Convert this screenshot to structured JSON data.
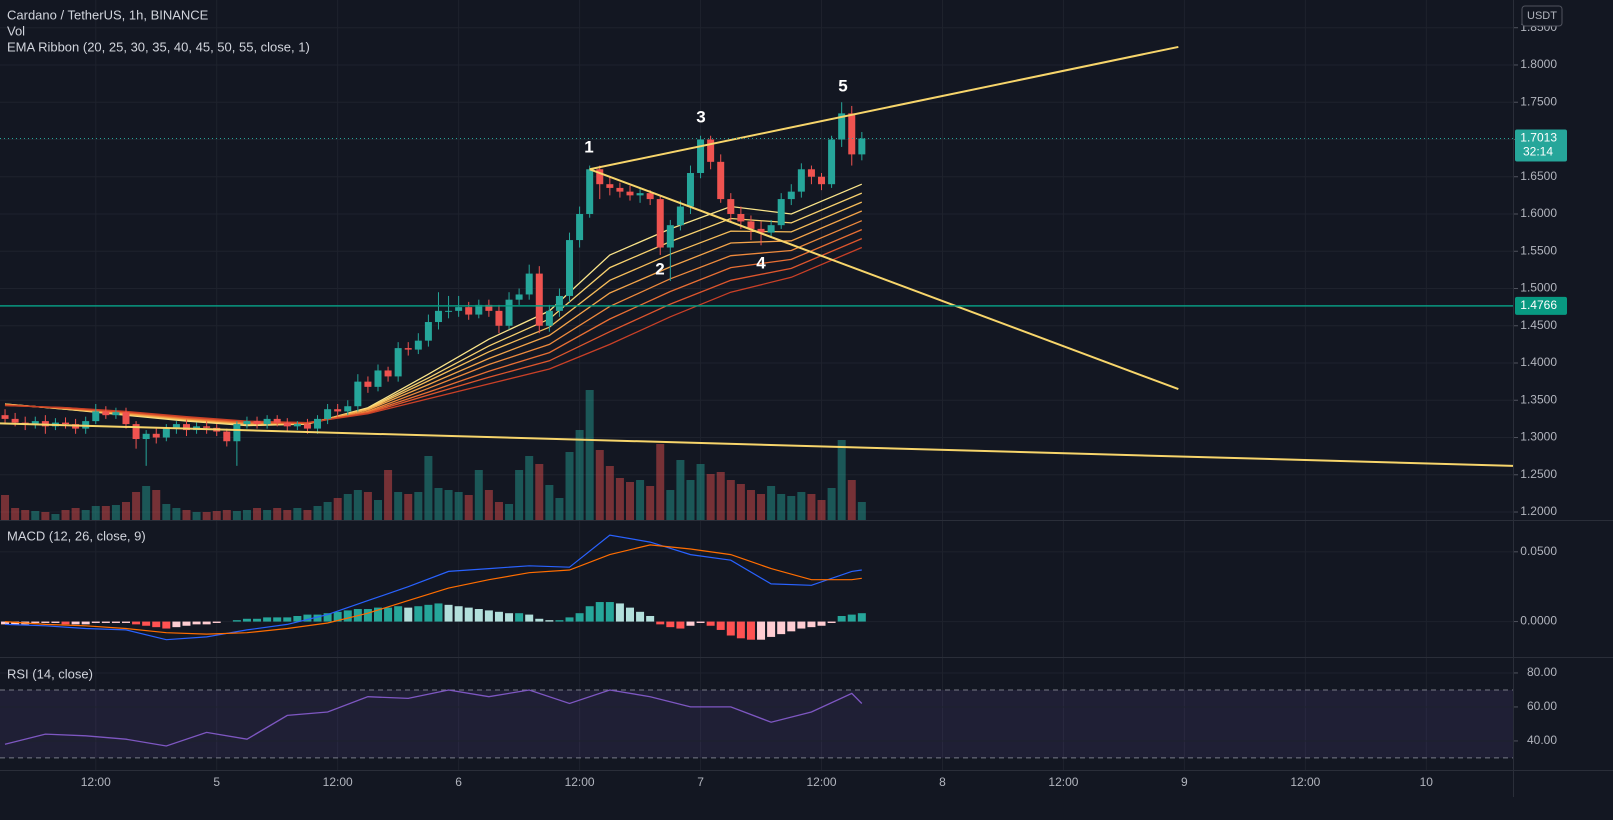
{
  "chart_data": [
    {
      "type": "candlestick",
      "title": "Cardano / TetherUS, 1h, BINANCE",
      "volume_label": "Vol",
      "ribbon_label": "EMA Ribbon (20, 25, 30, 35, 40, 45, 50, 55, close, 1)",
      "currency": "USDT",
      "xlim": [
        -0.5,
        149.6
      ],
      "xticks": [
        {
          "value": 9,
          "label": "12:00"
        },
        {
          "value": 21,
          "label": "5"
        },
        {
          "value": 33,
          "label": "12:00"
        },
        {
          "value": 45,
          "label": "6"
        },
        {
          "value": 57,
          "label": "12:00"
        },
        {
          "value": 69,
          "label": "7"
        },
        {
          "value": 81,
          "label": "12:00"
        },
        {
          "value": 93,
          "label": "8"
        },
        {
          "value": 105,
          "label": "12:00"
        },
        {
          "value": 117,
          "label": "9"
        },
        {
          "value": 129,
          "label": "12:00"
        },
        {
          "value": 141,
          "label": "10"
        }
      ],
      "ylim": [
        1.1893,
        1.8872
      ],
      "yticks": [
        {
          "value": 1.2,
          "label": "1.2000"
        },
        {
          "value": 1.25,
          "label": "1.2500"
        },
        {
          "value": 1.3,
          "label": "1.3000"
        },
        {
          "value": 1.35,
          "label": "1.3500"
        },
        {
          "value": 1.4,
          "label": "1.4000"
        },
        {
          "value": 1.45,
          "label": "1.4500"
        },
        {
          "value": 1.5,
          "label": "1.5000"
        },
        {
          "value": 1.55,
          "label": "1.5500"
        },
        {
          "value": 1.6,
          "label": "1.6000"
        },
        {
          "value": 1.65,
          "label": "1.6500"
        },
        {
          "value": 1.7,
          "label": "1.7000"
        },
        {
          "value": 1.75,
          "label": "1.7500"
        },
        {
          "value": 1.8,
          "label": "1.8000"
        },
        {
          "value": 1.85,
          "label": "1.8500"
        }
      ],
      "grid": true,
      "up_color": "#26a69a",
      "down_color": "#ef5350",
      "open": [
        1.33,
        1.325,
        1.32,
        1.318,
        1.322,
        1.315,
        1.32,
        1.318,
        1.312,
        1.322,
        1.335,
        1.33,
        1.334,
        1.318,
        1.298,
        1.305,
        1.3,
        1.312,
        1.318,
        1.31,
        1.315,
        1.313,
        1.308,
        1.295,
        1.318,
        1.322,
        1.318,
        1.325,
        1.32,
        1.315,
        1.318,
        1.312,
        1.325,
        1.338,
        1.335,
        1.342,
        1.375,
        1.368,
        1.39,
        1.382,
        1.42,
        1.418,
        1.43,
        1.455,
        1.47,
        1.47,
        1.475,
        1.465,
        1.478,
        1.47,
        1.45,
        1.485,
        1.492,
        1.52,
        1.45,
        1.47,
        1.49,
        1.565,
        1.6,
        1.66,
        1.64,
        1.635,
        1.63,
        1.625,
        1.628,
        1.62,
        1.555,
        1.585,
        1.61,
        1.655,
        1.7,
        1.67,
        1.62,
        1.6,
        1.59,
        1.58,
        1.575,
        1.585,
        1.62,
        1.63,
        1.66,
        1.65,
        1.64,
        1.7,
        1.735,
        1.68
      ],
      "high": [
        1.338,
        1.333,
        1.328,
        1.328,
        1.33,
        1.326,
        1.327,
        1.325,
        1.328,
        1.345,
        1.342,
        1.34,
        1.34,
        1.322,
        1.31,
        1.312,
        1.318,
        1.322,
        1.324,
        1.32,
        1.322,
        1.318,
        1.312,
        1.322,
        1.328,
        1.328,
        1.33,
        1.33,
        1.326,
        1.322,
        1.325,
        1.33,
        1.345,
        1.345,
        1.35,
        1.385,
        1.382,
        1.398,
        1.395,
        1.428,
        1.428,
        1.44,
        1.465,
        1.495,
        1.49,
        1.49,
        1.482,
        1.485,
        1.485,
        1.478,
        1.495,
        1.5,
        1.532,
        1.53,
        1.478,
        1.5,
        1.575,
        1.61,
        1.665,
        1.665,
        1.65,
        1.642,
        1.638,
        1.635,
        1.632,
        1.625,
        1.592,
        1.618,
        1.665,
        1.705,
        1.705,
        1.68,
        1.628,
        1.61,
        1.598,
        1.59,
        1.592,
        1.628,
        1.64,
        1.668,
        1.665,
        1.655,
        1.705,
        1.75,
        1.745,
        1.71
      ],
      "low": [
        1.318,
        1.315,
        1.31,
        1.312,
        1.305,
        1.31,
        1.312,
        1.305,
        1.305,
        1.318,
        1.325,
        1.325,
        1.312,
        1.285,
        1.262,
        1.292,
        1.295,
        1.305,
        1.302,
        1.305,
        1.305,
        1.302,
        1.288,
        1.262,
        1.312,
        1.312,
        1.312,
        1.315,
        1.308,
        1.31,
        1.305,
        1.305,
        1.318,
        1.328,
        1.33,
        1.335,
        1.36,
        1.362,
        1.375,
        1.375,
        1.41,
        1.412,
        1.422,
        1.445,
        1.46,
        1.462,
        1.458,
        1.46,
        1.462,
        1.44,
        1.445,
        1.478,
        1.485,
        1.44,
        1.442,
        1.462,
        1.482,
        1.555,
        1.595,
        1.62,
        1.625,
        1.622,
        1.618,
        1.615,
        1.612,
        1.545,
        1.51,
        1.578,
        1.6,
        1.648,
        1.66,
        1.615,
        1.59,
        1.58,
        1.565,
        1.558,
        1.568,
        1.58,
        1.612,
        1.622,
        1.64,
        1.632,
        1.635,
        1.69,
        1.665,
        1.672
      ],
      "close": [
        1.325,
        1.32,
        1.318,
        1.322,
        1.315,
        1.32,
        1.318,
        1.312,
        1.322,
        1.335,
        1.33,
        1.334,
        1.318,
        1.298,
        1.305,
        1.3,
        1.312,
        1.318,
        1.31,
        1.315,
        1.313,
        1.308,
        1.295,
        1.318,
        1.322,
        1.318,
        1.325,
        1.32,
        1.315,
        1.318,
        1.312,
        1.325,
        1.338,
        1.335,
        1.342,
        1.375,
        1.368,
        1.39,
        1.382,
        1.42,
        1.418,
        1.43,
        1.455,
        1.47,
        1.47,
        1.475,
        1.465,
        1.478,
        1.47,
        1.45,
        1.485,
        1.492,
        1.52,
        1.45,
        1.47,
        1.49,
        1.565,
        1.6,
        1.66,
        1.64,
        1.635,
        1.63,
        1.625,
        1.628,
        1.62,
        1.555,
        1.585,
        1.61,
        1.655,
        1.7,
        1.67,
        1.62,
        1.6,
        1.59,
        1.58,
        1.575,
        1.585,
        1.62,
        1.63,
        1.66,
        1.65,
        1.64,
        1.7,
        1.735,
        1.68,
        1.7013
      ],
      "volume": [
        25,
        12,
        10,
        9,
        8,
        6,
        10,
        12,
        10,
        14,
        14,
        15,
        18,
        28,
        34,
        30,
        16,
        12,
        10,
        8,
        8,
        9,
        10,
        9,
        10,
        12,
        10,
        12,
        10,
        12,
        10,
        14,
        18,
        22,
        26,
        30,
        28,
        20,
        50,
        28,
        26,
        28,
        64,
        32,
        30,
        28,
        25,
        50,
        30,
        18,
        16,
        50,
        64,
        56,
        35,
        22,
        68,
        90,
        130,
        70,
        54,
        42,
        38,
        40,
        34,
        76,
        30,
        60,
        40,
        56,
        46,
        48,
        40,
        36,
        30,
        26,
        34,
        26,
        24,
        28,
        26,
        20,
        32,
        80,
        40,
        18
      ],
      "ribbon": {
        "x": [
          0,
          6,
          12,
          18,
          24,
          30,
          36,
          42,
          48,
          54,
          60,
          66,
          72,
          78,
          85
        ],
        "series": [
          {
            "color": "#fbe58a",
            "values": [
              1.345,
              1.338,
              1.33,
              1.322,
              1.316,
              1.318,
              1.34,
              1.385,
              1.432,
              1.47,
              1.545,
              1.58,
              1.61,
              1.6,
              1.64
            ]
          },
          {
            "color": "#f9d26f",
            "values": [
              1.345,
              1.338,
              1.331,
              1.323,
              1.317,
              1.318,
              1.339,
              1.38,
              1.423,
              1.459,
              1.528,
              1.563,
              1.594,
              1.588,
              1.628
            ]
          },
          {
            "color": "#f7bd5a",
            "values": [
              1.344,
              1.339,
              1.331,
              1.324,
              1.318,
              1.319,
              1.338,
              1.376,
              1.415,
              1.448,
              1.511,
              1.546,
              1.577,
              1.576,
              1.616
            ]
          },
          {
            "color": "#f4a44a",
            "values": [
              1.344,
              1.339,
              1.332,
              1.325,
              1.319,
              1.319,
              1.337,
              1.371,
              1.406,
              1.437,
              1.494,
              1.529,
              1.561,
              1.564,
              1.604
            ]
          },
          {
            "color": "#ef8a3d",
            "values": [
              1.344,
              1.339,
              1.333,
              1.325,
              1.319,
              1.319,
              1.335,
              1.366,
              1.398,
              1.425,
              1.476,
              1.513,
              1.544,
              1.551,
              1.591
            ]
          },
          {
            "color": "#e96f34",
            "values": [
              1.344,
              1.339,
              1.334,
              1.326,
              1.32,
              1.319,
              1.334,
              1.361,
              1.389,
              1.414,
              1.459,
              1.496,
              1.528,
              1.539,
              1.579
            ]
          },
          {
            "color": "#de562d",
            "values": [
              1.343,
              1.34,
              1.334,
              1.327,
              1.321,
              1.32,
              1.333,
              1.357,
              1.381,
              1.403,
              1.442,
              1.479,
              1.511,
              1.527,
              1.567
            ]
          },
          {
            "color": "#c94027",
            "values": [
              1.343,
              1.34,
              1.335,
              1.328,
              1.322,
              1.32,
              1.332,
              1.352,
              1.372,
              1.392,
              1.425,
              1.462,
              1.495,
              1.515,
              1.555
            ]
          }
        ]
      },
      "trend_color": "#f7d56b",
      "trend_lines": [
        {
          "x": [
            58,
            116.4
          ],
          "y": [
            1.66,
            1.8242
          ]
        },
        {
          "x": [
            58,
            116.4
          ],
          "y": [
            1.66,
            1.365
          ]
        },
        {
          "x": [
            -0.5,
            149.6
          ],
          "y": [
            1.319,
            1.262
          ]
        }
      ],
      "last_price": 1.7013,
      "countdown": "32:14",
      "level": 1.4766,
      "level_color": "#089981",
      "wave_labels": [
        "1",
        "2",
        "3",
        "4",
        "5"
      ]
    },
    {
      "type": "macd",
      "title": "MACD (12, 26, close, 9)",
      "ylim": [
        -0.0254,
        0.0721
      ],
      "yticks": [
        {
          "value": 0,
          "label": "0.0000"
        },
        {
          "value": 0.05,
          "label": "0.0500"
        }
      ],
      "x": [
        0,
        4,
        8,
        12,
        16,
        20,
        24,
        28,
        32,
        36,
        40,
        44,
        48,
        52,
        56,
        60,
        64,
        68,
        72,
        76,
        80,
        84,
        85
      ],
      "series": [
        {
          "color": "#2962ff",
          "values": [
            -0.002,
            -0.003,
            -0.005,
            -0.006,
            -0.013,
            -0.011,
            -0.006,
            -0.002,
            0.005,
            0.015,
            0.025,
            0.036,
            0.038,
            0.04,
            0.039,
            0.062,
            0.057,
            0.048,
            0.044,
            0.027,
            0.026,
            0.036,
            0.037
          ]
        },
        {
          "color": "#ff6d00",
          "values": [
            0.0,
            -0.002,
            -0.003,
            -0.005,
            -0.008,
            -0.009,
            -0.008,
            -0.005,
            -0.001,
            0.006,
            0.015,
            0.024,
            0.03,
            0.035,
            0.037,
            0.048,
            0.055,
            0.052,
            0.048,
            0.038,
            0.03,
            0.03,
            0.031
          ]
        }
      ],
      "histogram": [
        -0.002,
        -0.002,
        -0.002,
        -0.001,
        -0.001,
        -0.001,
        -0.002,
        -0.002,
        -0.002,
        -0.001,
        -0.001,
        -0.001,
        -0.001,
        -0.002,
        -0.003,
        -0.004,
        -0.005,
        -0.004,
        -0.003,
        -0.002,
        -0.002,
        -0.001,
        0.0,
        0.001,
        0.002,
        0.002,
        0.003,
        0.003,
        0.003,
        0.004,
        0.005,
        0.005,
        0.006,
        0.007,
        0.008,
        0.009,
        0.009,
        0.01,
        0.01,
        0.011,
        0.01,
        0.011,
        0.012,
        0.013,
        0.012,
        0.011,
        0.01,
        0.009,
        0.008,
        0.007,
        0.006,
        0.006,
        0.005,
        0.002,
        0.001,
        0.001,
        0.003,
        0.006,
        0.011,
        0.014,
        0.014,
        0.013,
        0.01,
        0.007,
        0.004,
        -0.002,
        -0.004,
        -0.005,
        -0.003,
        -0.001,
        -0.003,
        -0.006,
        -0.01,
        -0.012,
        -0.013,
        -0.013,
        -0.011,
        -0.009,
        -0.007,
        -0.005,
        -0.004,
        -0.003,
        -0.001,
        0.004,
        0.005,
        0.006
      ],
      "histogram_colors": [
        "#26a69a",
        "#b2dfdb",
        "#ff5252",
        "#ffcdd2"
      ]
    },
    {
      "type": "rsi",
      "title": "RSI (14, close)",
      "ylim": [
        22.9,
        88.8
      ],
      "yticks": [
        {
          "value": 40,
          "label": "40.00"
        },
        {
          "value": 60,
          "label": "60.00"
        },
        {
          "value": 80,
          "label": "80.00"
        }
      ],
      "x": [
        0,
        4,
        8,
        12,
        16,
        20,
        24,
        28,
        32,
        36,
        40,
        44,
        48,
        52,
        56,
        60,
        64,
        68,
        72,
        76,
        80,
        84,
        85
      ],
      "values": [
        38,
        44,
        43,
        41,
        37,
        45,
        41,
        55,
        57,
        66,
        65,
        70,
        66,
        70,
        62,
        70,
        66,
        60,
        60,
        51,
        57,
        68,
        62
      ],
      "color": "#7e57c2",
      "band": [
        30,
        70
      ]
    }
  ]
}
